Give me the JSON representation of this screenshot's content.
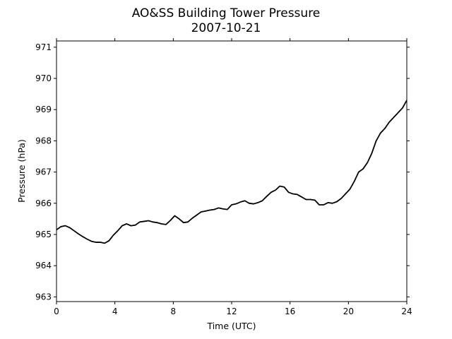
{
  "chart_data": {
    "type": "line",
    "title": "AO&SS Building Tower Pressure",
    "subtitle": "2007-10-21",
    "xlabel": "Time (UTC)",
    "ylabel": "Pressure (hPa)",
    "xlim": [
      0,
      24
    ],
    "ylim": [
      962.85,
      971.2
    ],
    "xticks": [
      0,
      4,
      8,
      12,
      16,
      20,
      24
    ],
    "yticks": [
      963,
      964,
      965,
      966,
      967,
      968,
      969,
      970,
      971
    ],
    "grid": false,
    "legend": "none",
    "line_color": "#000000",
    "series": [
      {
        "x": [
          0,
          0.3,
          0.6,
          0.9,
          1.2,
          1.5,
          1.8,
          2.1,
          2.4,
          2.7,
          3.0,
          3.3,
          3.6,
          3.9,
          4.2,
          4.5,
          4.8,
          5.1,
          5.4,
          5.7,
          6.0,
          6.3,
          6.6,
          6.9,
          7.2,
          7.5,
          7.8,
          8.1,
          8.4,
          8.7,
          9.0,
          9.3,
          9.6,
          9.9,
          10.2,
          10.5,
          10.8,
          11.1,
          11.4,
          11.7,
          12.0,
          12.3,
          12.6,
          12.9,
          13.2,
          13.5,
          13.8,
          14.1,
          14.4,
          14.7,
          15.0,
          15.3,
          15.6,
          15.9,
          16.2,
          16.5,
          16.8,
          17.1,
          17.4,
          17.7,
          18.0,
          18.3,
          18.6,
          18.9,
          19.2,
          19.5,
          19.8,
          20.1,
          20.4,
          20.7,
          21.0,
          21.3,
          21.6,
          21.9,
          22.2,
          22.5,
          22.8,
          23.1,
          23.4,
          23.7,
          24.0
        ],
        "y": [
          965.15,
          965.25,
          965.28,
          965.22,
          965.12,
          965.02,
          964.93,
          964.85,
          964.78,
          964.75,
          964.75,
          964.72,
          964.8,
          964.98,
          965.12,
          965.28,
          965.34,
          965.28,
          965.3,
          965.4,
          965.42,
          965.44,
          965.4,
          965.38,
          965.34,
          965.32,
          965.45,
          965.6,
          965.5,
          965.38,
          965.4,
          965.52,
          965.62,
          965.72,
          965.75,
          965.78,
          965.8,
          965.85,
          965.82,
          965.8,
          965.95,
          965.98,
          966.04,
          966.08,
          966.0,
          965.98,
          966.02,
          966.08,
          966.22,
          966.35,
          966.42,
          966.55,
          966.52,
          966.35,
          966.3,
          966.28,
          966.2,
          966.12,
          966.12,
          966.1,
          965.95,
          965.95,
          966.02,
          966.0,
          966.05,
          966.15,
          966.3,
          966.45,
          966.7,
          967.0,
          967.1,
          967.3,
          967.6,
          968.0,
          968.25,
          968.4,
          968.6,
          968.75,
          968.9,
          969.05,
          969.3
        ]
      }
    ]
  }
}
